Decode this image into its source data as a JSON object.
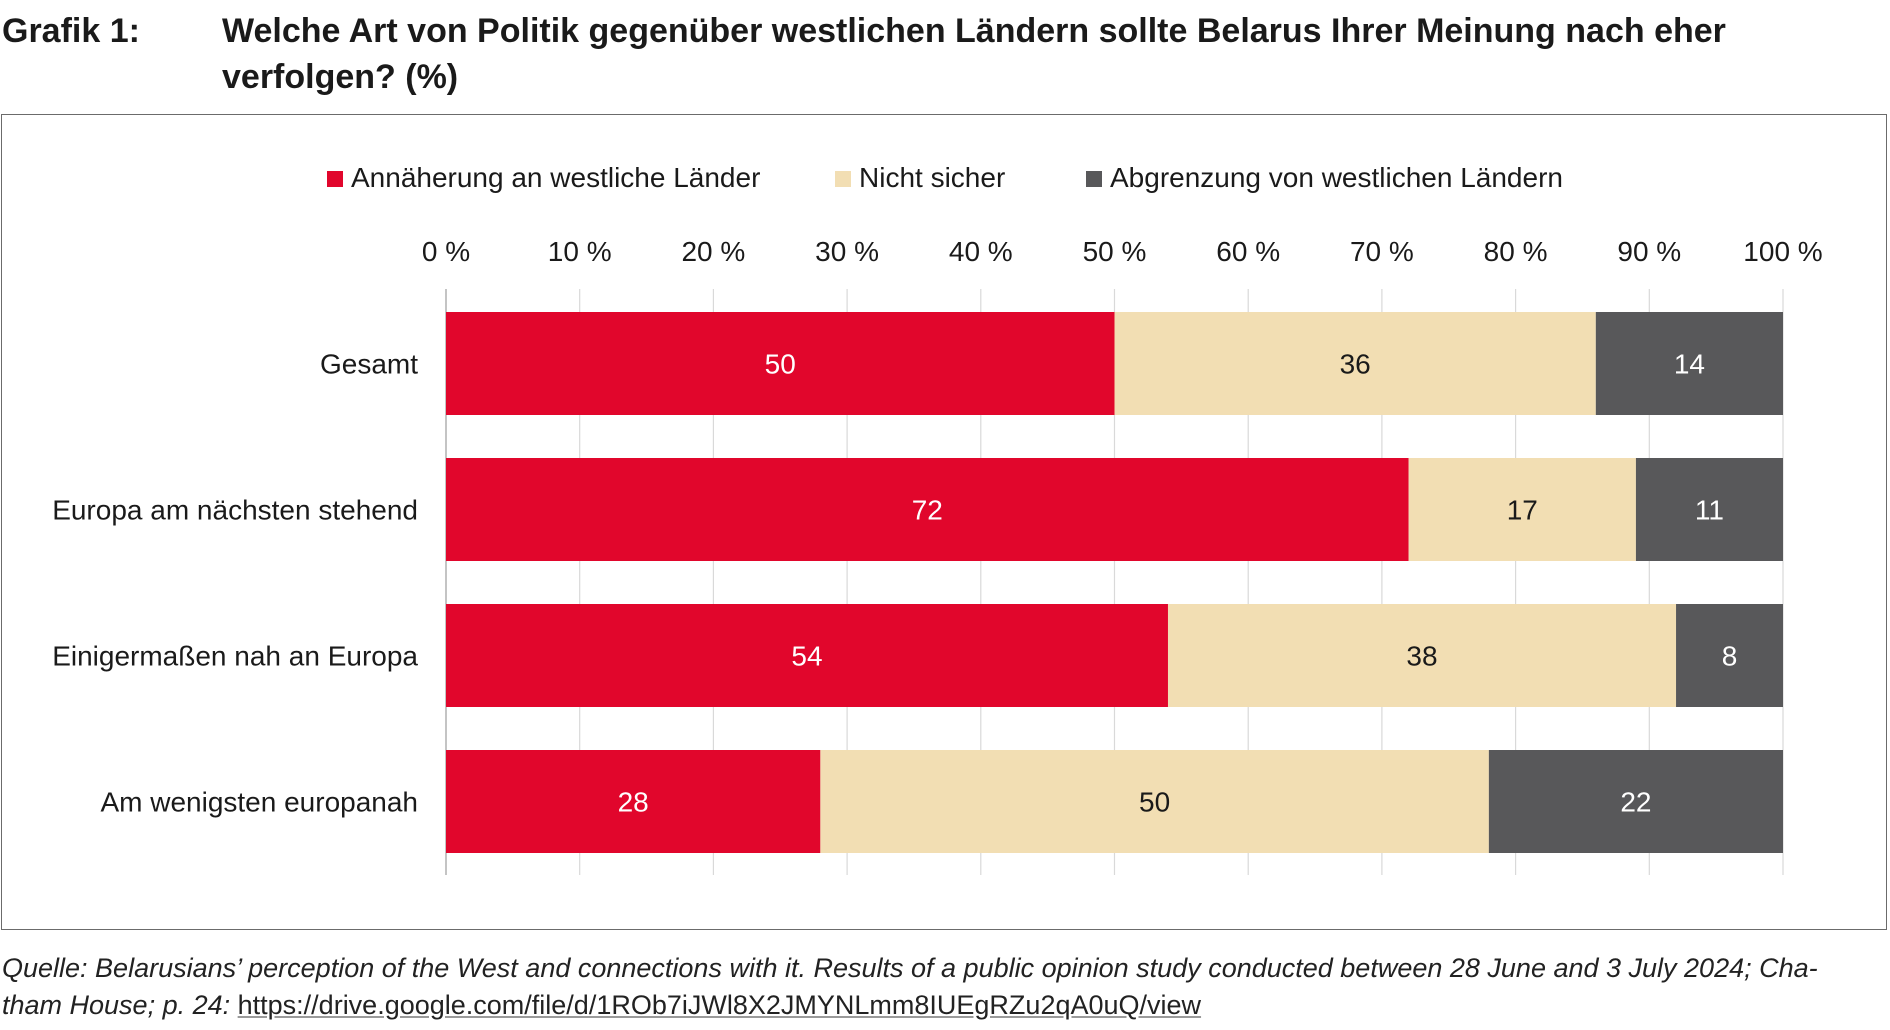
{
  "header": {
    "label": "Grafik 1:",
    "title": "Welche Art von Politik gegenüber westlichen Ländern sollte Belarus Ihrer Meinung nach eher verfolgen? (%)"
  },
  "footer": {
    "source_text_1": "Quelle: Belarusians’ perception of the West and connections with it. Results of a public opinion study conducted between 28 June and 3 July 2024; Cha-",
    "source_text_2": "tham House; p. 24: ",
    "source_link": "https://drive.google.com/file/d/1ROb7iJWl8X2JMYNLmm8IUEgRZu2qA0uQ/view"
  },
  "chart_data": {
    "type": "bar",
    "orientation": "horizontal",
    "stacked": true,
    "title": "Welche Art von Politik gegenüber westlichen Ländern sollte Belarus Ihrer Meinung nach eher verfolgen? (%)",
    "xlabel": "",
    "ylabel": "",
    "xlim": [
      0,
      100
    ],
    "x_ticks": [
      0,
      10,
      20,
      30,
      40,
      50,
      60,
      70,
      80,
      90,
      100
    ],
    "x_tick_labels": [
      "0 %",
      "10 %",
      "20 %",
      "30 %",
      "40 %",
      "50 %",
      "60 %",
      "70 %",
      "80 %",
      "90 %",
      "100 %"
    ],
    "x_axis_position": "top",
    "grid": true,
    "legend_position": "top-center",
    "categories": [
      "Gesamt",
      "Europa am nächsten stehend",
      "Einigermaßen nah an Europa",
      "Am wenigsten europanah"
    ],
    "series": [
      {
        "name": "Annäherung an westliche Länder",
        "color": "#e1062c",
        "label_color": "#ffffff",
        "values": [
          50,
          72,
          54,
          28
        ]
      },
      {
        "name": "Nicht sicher",
        "color": "#f2deb3",
        "label_color": "#1a1a1a",
        "values": [
          36,
          17,
          38,
          50
        ]
      },
      {
        "name": "Abgrenzung von westlichen Ländern",
        "color": "#58585a",
        "label_color": "#ffffff",
        "values": [
          14,
          11,
          8,
          22
        ]
      }
    ]
  }
}
